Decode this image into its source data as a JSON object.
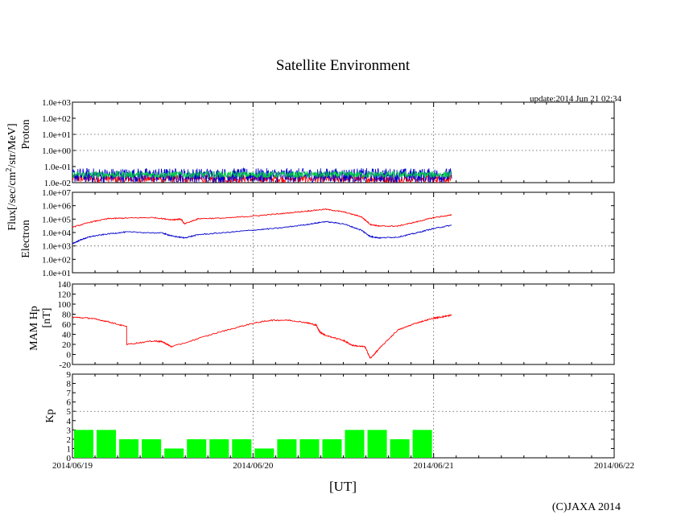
{
  "title": "Satellite Environment",
  "update_text": "update:2014 Jun 21 02:34",
  "copyright": "(C)JAXA 2014",
  "x_axis_label": "[UT]",
  "x_ticks": [
    "2014/06/19",
    "2014/06/20",
    "2014/06/21",
    "2014/06/22"
  ],
  "shared_ylabel_flux": "Flux[/sec/cm²/str/MeV]",
  "colors": {
    "red": "#ff0000",
    "blue": "#0000cc",
    "green": "#00cc44",
    "kp_bar": "#00ff00",
    "grid": "#555555"
  },
  "chart_data": [
    {
      "type": "line",
      "name": "proton-panel",
      "ylabel": "Proton",
      "yscale": "log",
      "ylim": [
        0.01,
        1000
      ],
      "yticks": [
        "1.0e-02",
        "1.0e-01",
        "1.0e+00",
        "1.0e+01",
        "1.0e+02",
        "1.0e+03"
      ],
      "xlim_days": [
        0,
        3
      ],
      "series": [
        {
          "color": "red",
          "description_range": [
            0.01,
            0.03
          ],
          "x_range_days": [
            0,
            2.1
          ]
        },
        {
          "color": "blue",
          "description_range": [
            0.01,
            0.08
          ],
          "x_range_days": [
            0,
            2.1
          ]
        },
        {
          "color": "green",
          "description_range": [
            0.02,
            0.05
          ],
          "x_range_days": [
            0,
            2.1
          ]
        }
      ]
    },
    {
      "type": "line",
      "name": "electron-panel",
      "ylabel": "Electron",
      "yscale": "log",
      "ylim": [
        10,
        10000000
      ],
      "yticks": [
        "1.0e+01",
        "1.0e+02",
        "1.0e+03",
        "1.0e+04",
        "1.0e+05",
        "1.0e+06",
        "1.0e+07"
      ],
      "series": [
        {
          "color": "red",
          "x": [
            0,
            0.1,
            0.2,
            0.3,
            0.45,
            0.55,
            0.6,
            0.62,
            0.7,
            0.85,
            1.0,
            1.15,
            1.3,
            1.4,
            1.5,
            1.6,
            1.65,
            1.7,
            1.8,
            1.9,
            2.0,
            2.1
          ],
          "y": [
            25000,
            60000,
            110000,
            120000,
            130000,
            90000,
            100000,
            45000,
            110000,
            120000,
            170000,
            250000,
            400000,
            550000,
            350000,
            150000,
            40000,
            30000,
            30000,
            60000,
            130000,
            200000
          ]
        },
        {
          "color": "blue",
          "x": [
            0,
            0.05,
            0.1,
            0.2,
            0.3,
            0.5,
            0.55,
            0.62,
            0.7,
            0.85,
            1.0,
            1.15,
            1.3,
            1.4,
            1.5,
            1.6,
            1.65,
            1.7,
            1.8,
            1.9,
            2.0,
            2.1
          ],
          "y": [
            1500,
            3000,
            5000,
            8000,
            11000,
            9000,
            5500,
            4000,
            7000,
            10000,
            15000,
            22000,
            40000,
            65000,
            45000,
            15000,
            5000,
            4000,
            4500,
            9000,
            20000,
            35000
          ]
        }
      ]
    },
    {
      "type": "line",
      "name": "mam-hp-panel",
      "ylabel": "MAM Hp",
      "ylabel2": "[nT]",
      "ylim": [
        -20,
        140
      ],
      "yticks": [
        "-20",
        "0",
        "20",
        "40",
        "60",
        "80",
        "100",
        "120",
        "140"
      ],
      "series": [
        {
          "color": "red",
          "x": [
            0,
            0.1,
            0.2,
            0.3,
            0.3,
            0.45,
            0.5,
            0.55,
            0.8,
            1.0,
            1.1,
            1.2,
            1.3,
            1.35,
            1.37,
            1.4,
            1.5,
            1.55,
            1.62,
            1.65,
            1.7,
            1.8,
            1.9,
            2.0,
            2.05,
            2.1
          ],
          "y": [
            74,
            72,
            65,
            55,
            20,
            27,
            25,
            15,
            43,
            62,
            68,
            68,
            63,
            58,
            45,
            38,
            28,
            18,
            15,
            -8,
            12,
            48,
            62,
            72,
            75,
            78
          ]
        }
      ]
    },
    {
      "type": "bar",
      "name": "kp-panel",
      "ylabel": "Kp",
      "ylim": [
        0,
        9
      ],
      "yticks": [
        "0",
        "1",
        "2",
        "3",
        "4",
        "5",
        "6",
        "7",
        "8",
        "9"
      ],
      "bar_width_days": 0.125,
      "values": [
        3,
        3,
        2,
        2,
        1,
        2,
        2,
        2,
        1,
        2,
        2,
        2,
        3,
        3,
        2,
        3
      ]
    }
  ]
}
